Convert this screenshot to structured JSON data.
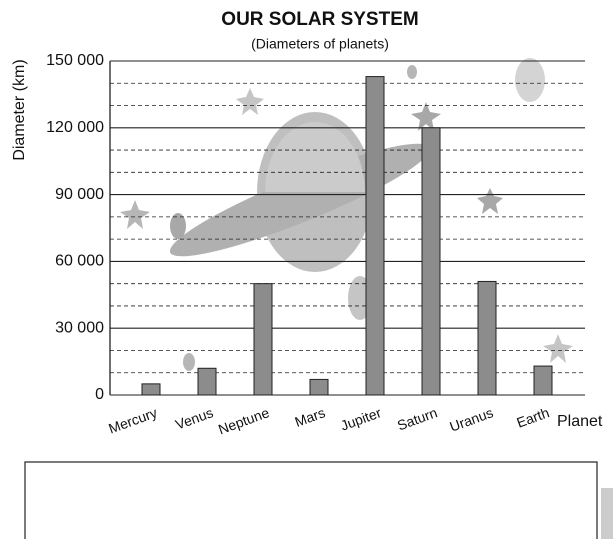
{
  "chart_data": {
    "type": "bar",
    "title": "OUR SOLAR SYSTEM",
    "subtitle": "(Diameters of planets)",
    "y_label": "Diameter (km)",
    "x_label": "Planet",
    "categories": [
      "Mercury",
      "Venus",
      "Neptune",
      "Mars",
      "Jupiter",
      "Saturn",
      "Uranus",
      "Earth"
    ],
    "values": [
      5000,
      12000,
      50000,
      7000,
      143000,
      120000,
      51000,
      13000
    ],
    "color": "#8c8c8c",
    "ylim": [
      0,
      150000
    ],
    "yticks": [
      0,
      {
        "value": 30000,
        "label": "30 000"
      },
      {
        "value": 60000,
        "label": "60 000"
      },
      {
        "value": 90000,
        "label": "90 000"
      },
      {
        "value": 120000,
        "label": "120 000"
      },
      {
        "value": 150000,
        "label": "150 000"
      }
    ],
    "minor_yticks": [
      10000,
      20000,
      40000,
      50000,
      70000,
      80000,
      100000,
      110000,
      130000,
      140000
    ],
    "grid": true
  }
}
